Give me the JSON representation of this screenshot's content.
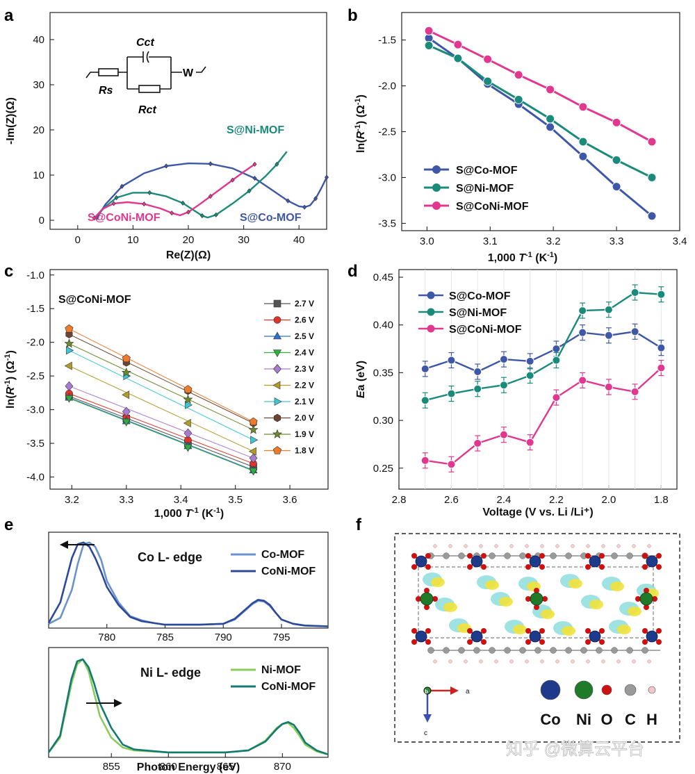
{
  "panels": {
    "a": "a",
    "b": "b",
    "c": "c",
    "d": "d",
    "e": "e",
    "f": "f"
  },
  "watermark": "知乎 @微算云平台",
  "colors": {
    "co": "#3e57a6",
    "ni": "#1a8a7a",
    "coni": "#e2378f",
    "co_light": "#6a92cf",
    "ni_light": "#8bcb5a",
    "teal_dark": "#127a72"
  },
  "chart_data": [
    {
      "id": "a",
      "type": "scatter",
      "title": "",
      "xlabel": "Re(Z)(Ω)",
      "ylabel": "-Im(Z)(Ω)",
      "xlim": [
        -5,
        45
      ],
      "ylim": [
        -2,
        46
      ],
      "xticks": [
        "0",
        "10",
        "20",
        "30",
        "40"
      ],
      "yticks": [
        "0",
        "10",
        "20",
        "30",
        "40"
      ],
      "circuit": {
        "cct": "Cct",
        "rs": "Rs",
        "rct": "Rct",
        "w": "W"
      },
      "labels": {
        "ni": "S@Ni-MOF",
        "coni": "S@CoNi-MOF",
        "co": "S@Co-MOF"
      },
      "series": [
        {
          "name": "S@Co-MOF",
          "color": "#3e57a6",
          "x": [
            3.5,
            5,
            8,
            12,
            16,
            20,
            24,
            28,
            32,
            35,
            38,
            40,
            41,
            42,
            43,
            44,
            45
          ],
          "y": [
            0.6,
            3.5,
            7.5,
            10.4,
            12,
            12.6,
            12.5,
            11.5,
            9.3,
            6.8,
            4.3,
            3.1,
            2.9,
            3.3,
            4.8,
            7,
            9.5
          ]
        },
        {
          "name": "S@Ni-MOF",
          "color": "#1a8a7a",
          "x": [
            3,
            5,
            7,
            10,
            13,
            16,
            19,
            21,
            22.5,
            23.5,
            25,
            28,
            31,
            34,
            36,
            37.8
          ],
          "y": [
            0.5,
            3,
            5,
            6.1,
            6.1,
            5.3,
            3.8,
            2.2,
            1,
            0.6,
            1.2,
            3.7,
            6.5,
            9.8,
            12.4,
            15.2
          ]
        },
        {
          "name": "S@CoNi-MOF",
          "color": "#e2378f",
          "x": [
            3,
            4.5,
            6.5,
            9,
            12,
            15,
            17,
            18.5,
            20,
            22,
            24,
            26,
            28,
            30,
            32
          ],
          "y": [
            0.5,
            2.5,
            3.7,
            4,
            3.6,
            2.6,
            1.6,
            1.1,
            1.8,
            3.5,
            5.3,
            7.1,
            8.9,
            10.7,
            12.4
          ]
        }
      ]
    },
    {
      "id": "b",
      "type": "line",
      "xlabel": "1,000 T⁻¹ (K⁻¹)",
      "ylabel": "ln(R⁻¹) (Ω⁻¹)",
      "xlim": [
        2.96,
        3.4
      ],
      "ylim": [
        -3.58,
        -1.2
      ],
      "xticks": [
        "3.0",
        "3.1",
        "3.2",
        "3.3",
        "3.4"
      ],
      "yticks": [
        "-1.5",
        "-2.0",
        "-2.5",
        "-3.0",
        "-3.5"
      ],
      "x": [
        3.003,
        3.049,
        3.096,
        3.145,
        3.195,
        3.247,
        3.3,
        3.356
      ],
      "series": [
        {
          "name": "S@Co-MOF",
          "color": "#3e57a6",
          "values": [
            -1.48,
            -1.7,
            -1.98,
            -2.2,
            -2.45,
            -2.77,
            -3.1,
            -3.42
          ]
        },
        {
          "name": "S@Ni-MOF",
          "color": "#1a8a7a",
          "values": [
            -1.56,
            -1.7,
            -1.95,
            -2.15,
            -2.36,
            -2.61,
            -2.81,
            -3.0
          ]
        },
        {
          "name": "S@CoNi-MOF",
          "color": "#e2378f",
          "values": [
            -1.4,
            -1.55,
            -1.71,
            -1.88,
            -2.04,
            -2.23,
            -2.4,
            -2.61
          ]
        }
      ]
    },
    {
      "id": "c",
      "type": "scatter",
      "title": "S@CoNi-MOF",
      "xlabel": "1,000 T⁻¹ (K⁻¹)",
      "ylabel": "ln(R⁻¹) (Ω⁻¹)",
      "xlim": [
        3.16,
        3.67
      ],
      "ylim": [
        -4.18,
        -0.92
      ],
      "xticks": [
        "3.2",
        "3.3",
        "3.4",
        "3.5",
        "3.6"
      ],
      "yticks": [
        "-1.0",
        "-1.5",
        "-2.0",
        "-2.5",
        "-3.0",
        "-3.5",
        "-4.0"
      ],
      "x": [
        3.195,
        3.3,
        3.413,
        3.533
      ],
      "series": [
        {
          "name": "2.7 V",
          "color": "#555555",
          "marker": "square",
          "values": [
            -2.8,
            -3.13,
            -3.5,
            -3.85
          ]
        },
        {
          "name": "2.6 V",
          "color": "#e2332a",
          "marker": "circle",
          "values": [
            -2.76,
            -3.12,
            -3.45,
            -3.8
          ]
        },
        {
          "name": "2.5 V",
          "color": "#2f6fc6",
          "marker": "triangle",
          "values": [
            -2.82,
            -3.17,
            -3.54,
            -3.9
          ]
        },
        {
          "name": "2.4 V",
          "color": "#2fae3f",
          "marker": "triangle-down",
          "values": [
            -2.83,
            -3.18,
            -3.56,
            -3.91
          ]
        },
        {
          "name": "2.3 V",
          "color": "#a77bd0",
          "marker": "diamond",
          "values": [
            -2.65,
            -3.03,
            -3.35,
            -3.72
          ]
        },
        {
          "name": "2.2 V",
          "color": "#b29a2a",
          "marker": "triangle-left",
          "values": [
            -2.35,
            -2.78,
            -3.2,
            -3.62
          ]
        },
        {
          "name": "2.1 V",
          "color": "#3cc7d4",
          "marker": "triangle-right",
          "values": [
            -2.12,
            -2.5,
            -2.93,
            -3.45
          ]
        },
        {
          "name": "2.0 V",
          "color": "#6b4433",
          "marker": "hexagon",
          "values": [
            -1.88,
            -2.3,
            -2.72,
            -3.2
          ]
        },
        {
          "name": "1.9 V",
          "color": "#6b8a2a",
          "marker": "star",
          "values": [
            -2.02,
            -2.45,
            -2.85,
            -3.3
          ]
        },
        {
          "name": "1.8 V",
          "color": "#ee7a2a",
          "marker": "pentagon",
          "values": [
            -1.8,
            -2.24,
            -2.7,
            -3.18
          ]
        }
      ]
    },
    {
      "id": "d",
      "type": "line",
      "xlabel": "Voltage (V vs. Li /Li⁺)",
      "ylabel": "Ea (eV)",
      "xlim": [
        2.8,
        1.74
      ],
      "ylim": [
        0.228,
        0.458
      ],
      "xticks": [
        "2.8",
        "2.6",
        "2.4",
        "2.2",
        "2.0",
        "1.8"
      ],
      "yticks": [
        "0.25",
        "0.30",
        "0.35",
        "0.40",
        "0.45"
      ],
      "x": [
        2.7,
        2.6,
        2.5,
        2.4,
        2.3,
        2.2,
        2.1,
        2.0,
        1.9,
        1.8
      ],
      "series": [
        {
          "name": "S@Co-MOF",
          "color": "#3e57a6",
          "values": [
            0.354,
            0.363,
            0.351,
            0.364,
            0.362,
            0.375,
            0.392,
            0.389,
            0.393,
            0.376
          ]
        },
        {
          "name": "S@Ni-MOF",
          "color": "#1a8a7a",
          "values": [
            0.321,
            0.328,
            0.333,
            0.337,
            0.347,
            0.363,
            0.415,
            0.416,
            0.434,
            0.432
          ]
        },
        {
          "name": "S@CoNi-MOF",
          "color": "#e2378f",
          "values": [
            0.258,
            0.254,
            0.276,
            0.285,
            0.277,
            0.324,
            0.342,
            0.335,
            0.33,
            0.355
          ]
        }
      ]
    },
    {
      "id": "e_co",
      "type": "line",
      "annotation": "Co L- edge",
      "xlim": [
        775,
        799
      ],
      "ylim": [
        0,
        1.12
      ],
      "xticks": [
        "780",
        "785",
        "790",
        "795"
      ],
      "x": [
        775,
        776,
        777,
        777.5,
        778,
        778.5,
        779,
        779.5,
        780,
        781,
        782,
        783,
        784,
        785,
        786,
        788,
        790,
        791,
        792,
        792.5,
        793,
        793.5,
        794,
        794.5,
        795,
        796,
        797,
        799
      ],
      "series": [
        {
          "name": "Co-MOF",
          "color": "#6a92cf",
          "values": [
            0.05,
            0.12,
            0.45,
            0.75,
            0.98,
            1.0,
            0.95,
            0.8,
            0.55,
            0.3,
            0.14,
            0.09,
            0.06,
            0.04,
            0.04,
            0.04,
            0.05,
            0.1,
            0.22,
            0.28,
            0.32,
            0.31,
            0.26,
            0.18,
            0.1,
            0.05,
            0.03,
            0.02
          ]
        },
        {
          "name": "CoNi-MOF",
          "color": "#2d4a9a",
          "values": [
            0.06,
            0.3,
            0.82,
            0.98,
            1.0,
            0.95,
            0.82,
            0.66,
            0.48,
            0.27,
            0.13,
            0.08,
            0.06,
            0.04,
            0.04,
            0.04,
            0.05,
            0.11,
            0.23,
            0.29,
            0.33,
            0.32,
            0.27,
            0.18,
            0.1,
            0.05,
            0.03,
            0.02
          ]
        }
      ]
    },
    {
      "id": "e_ni",
      "type": "line",
      "annotation": "Ni L- edge",
      "xlabel": "Photon Energy (eV)",
      "xlim": [
        849.5,
        874
      ],
      "ylim": [
        0,
        1.12
      ],
      "xticks": [
        "855",
        "860",
        "865",
        "870"
      ],
      "x": [
        849.5,
        850.5,
        851.5,
        852,
        852.5,
        853,
        853.5,
        854,
        855,
        856,
        857,
        860,
        865,
        867,
        868.5,
        869.5,
        870,
        870.5,
        871,
        871.5,
        872,
        873,
        874
      ],
      "series": [
        {
          "name": "Ni-MOF",
          "color": "#8bcb5a",
          "values": [
            0.05,
            0.2,
            0.75,
            0.95,
            1.0,
            0.88,
            0.65,
            0.42,
            0.2,
            0.1,
            0.07,
            0.05,
            0.05,
            0.07,
            0.17,
            0.3,
            0.34,
            0.35,
            0.3,
            0.22,
            0.13,
            0.06,
            0.03
          ]
        },
        {
          "name": "CoNi-MOF",
          "color": "#127a72",
          "values": [
            0.05,
            0.22,
            0.8,
            0.98,
            1.0,
            0.92,
            0.75,
            0.55,
            0.3,
            0.13,
            0.08,
            0.05,
            0.05,
            0.07,
            0.16,
            0.29,
            0.34,
            0.36,
            0.33,
            0.25,
            0.15,
            0.07,
            0.03
          ]
        }
      ]
    }
  ],
  "structure": {
    "legend": [
      "Co",
      "Ni",
      "O",
      "C",
      "H"
    ],
    "colors": [
      "#1e3a8a",
      "#1f7a2a",
      "#cc1111",
      "#9a9a9a",
      "#f0c8c8"
    ],
    "axes": {
      "a": "a",
      "b": "b",
      "c": "c"
    }
  }
}
